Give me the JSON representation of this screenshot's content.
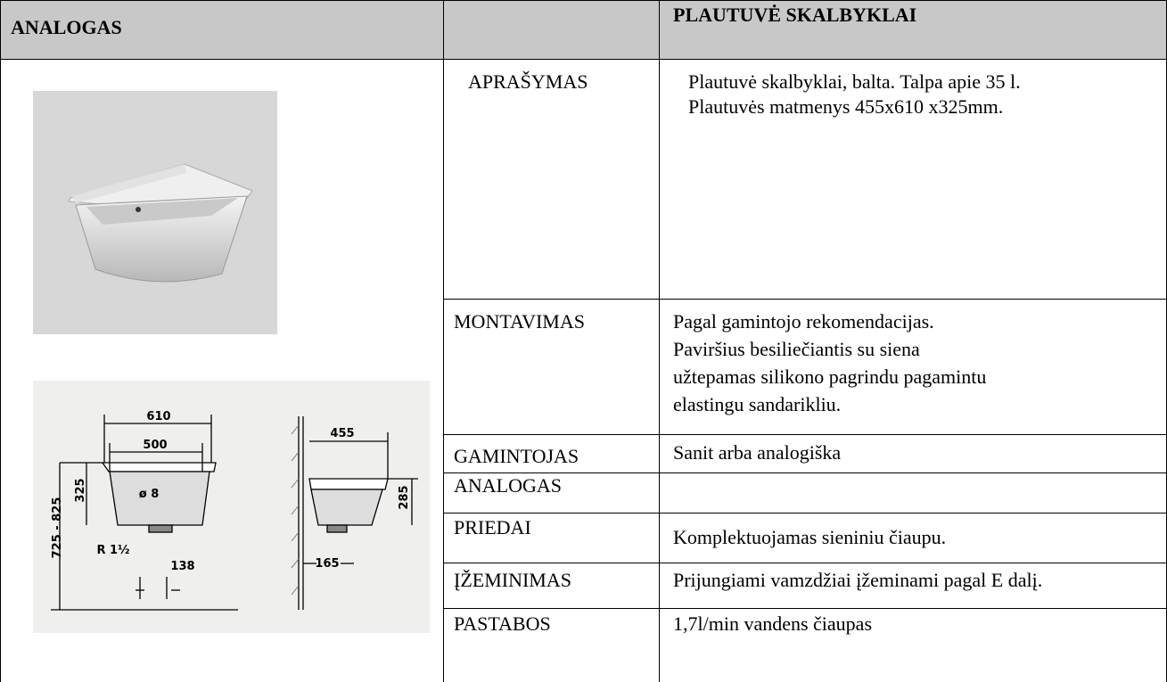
{
  "header": {
    "left": "ANALOGAS",
    "right": "PLAUTUVĖ SKALBYKLAI"
  },
  "rows": [
    {
      "label": "APRAŠYMAS",
      "lines": [
        "Plautuvė skalbyklai, balta. Talpa apie 35 l.",
        "Plautuvės matmenys 455x610 x325mm."
      ]
    },
    {
      "label": "MONTAVIMAS",
      "lines": [
        "Pagal gamintojo rekomendacijas.",
        "Paviršius besiliečiantis su siena",
        "užtepamas silikono pagrindu pagamintu",
        "elastingu sandarikliu."
      ]
    },
    {
      "label": "GAMINTOJAS",
      "lines": [
        "Sanit arba analogiška"
      ]
    },
    {
      "label": "ANALOGAS"
    },
    {
      "label": "PRIEDAI",
      "lines": [
        "Komplektuojamas sieniniu čiaupu."
      ]
    },
    {
      "label": "ĮŽEMINIMAS",
      "lines": [
        "Prijungiami vamzdžiai įžeminami pagal E dalį."
      ]
    },
    {
      "label": "PASTABOS",
      "lines": [
        "1,7l/min vandens čiaupas"
      ]
    }
  ],
  "drawing": {
    "labels": [
      "610",
      "500",
      "325",
      "ø 8",
      "725 - 825",
      "R 1½",
      "138",
      "455",
      "285",
      "165"
    ]
  }
}
